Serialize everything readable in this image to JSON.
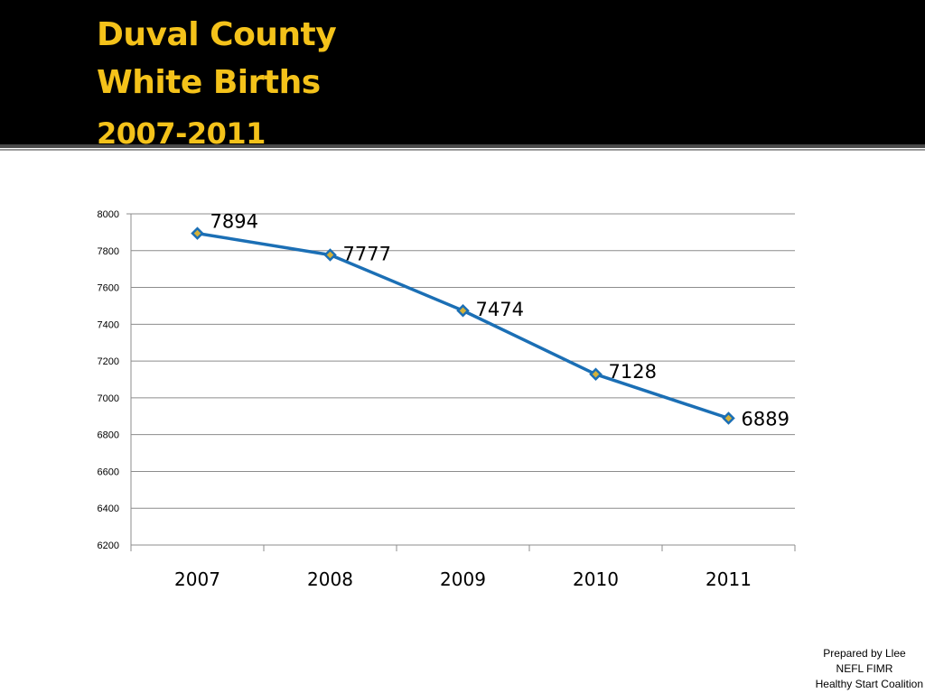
{
  "title_lines": [
    "Duval County",
    "White Births",
    "2007-2011"
  ],
  "colors": {
    "title_band": "#000000",
    "title_text": "#f4c21a",
    "series_line": "#1b6fb5",
    "marker_fill": "#d4b13a",
    "gridline": "#8c8c8c"
  },
  "chart_data": {
    "type": "line",
    "categories": [
      "2007",
      "2008",
      "2009",
      "2010",
      "2011"
    ],
    "series": [
      {
        "values": [
          7894,
          7777,
          7474,
          7128,
          6889
        ],
        "marker": "diamond"
      }
    ],
    "data_labels": [
      "7894",
      "7777",
      "7474",
      "7128",
      "6889"
    ],
    "ylim": [
      6200,
      8000
    ],
    "yticks": [
      6200,
      6400,
      6600,
      6800,
      7000,
      7200,
      7400,
      7600,
      7800,
      8000
    ],
    "grid": true,
    "legend": "none",
    "title": "",
    "xlabel": "",
    "ylabel": ""
  },
  "footer": {
    "line1": "Prepared by Llee",
    "line2": "NEFL FIMR",
    "line3": "Healthy Start Coalition"
  }
}
